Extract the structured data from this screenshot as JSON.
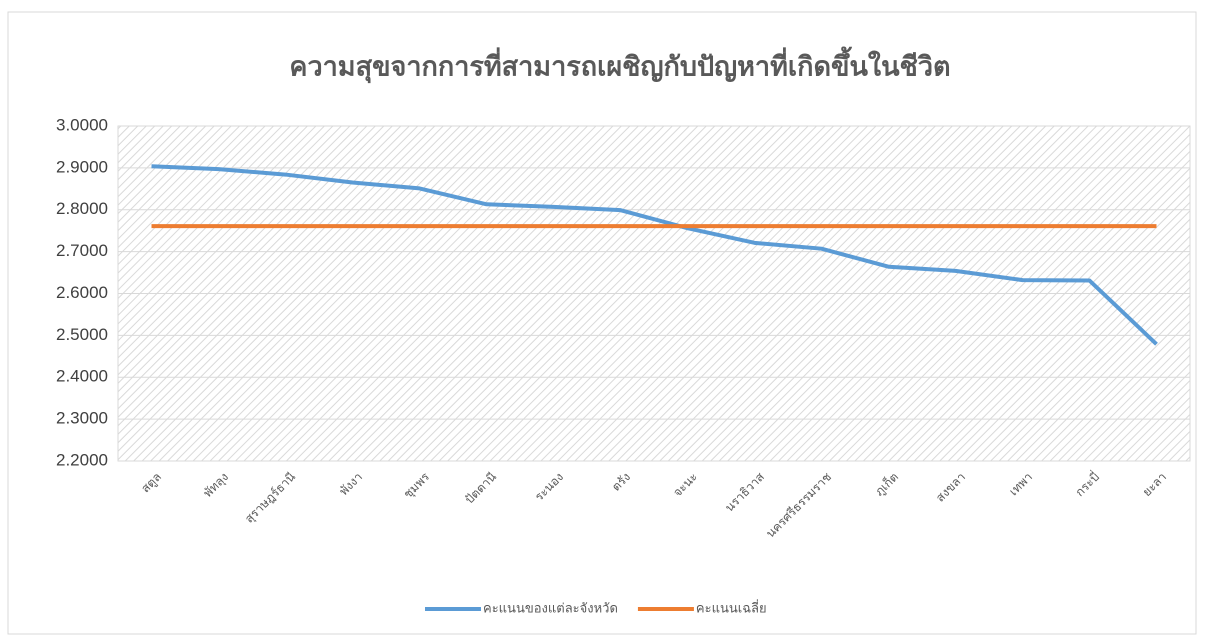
{
  "chart_data": {
    "type": "line",
    "title": "ความสุขจากการที่สามารถเผชิญกับปัญหาที่เกิดขึ้นในชีวิต",
    "categories": [
      "สตูล",
      "พัทลุง",
      "สุราษฎร์ธานี",
      "พังงา",
      "ชุมพร",
      "ปัตตานี",
      "ระนอง",
      "ตรัง",
      "จะนะ",
      "นราธิวาส",
      "นครศรีธรรมราช",
      "ภูเก็ต",
      "สงขลา",
      "เทพา",
      "กระบี่",
      "ยะลา"
    ],
    "series": [
      {
        "name": "คะแนนของแต่ละจังหวัด",
        "color": "#5b9bd5",
        "values": [
          2.904,
          2.897,
          2.884,
          2.865,
          2.851,
          2.813,
          2.807,
          2.799,
          2.756,
          2.721,
          2.707,
          2.664,
          2.654,
          2.632,
          2.631,
          2.479
        ]
      },
      {
        "name": "คะแนนเฉลี่ย",
        "color": "#ed7d31",
        "values": [
          2.761,
          2.761,
          2.761,
          2.761,
          2.761,
          2.761,
          2.761,
          2.761,
          2.761,
          2.761,
          2.761,
          2.761,
          2.761,
          2.761,
          2.761,
          2.761
        ]
      }
    ],
    "ylim": [
      2.2,
      3.0
    ],
    "yticks": [
      {
        "value": 2.2,
        "label": "2.2000"
      },
      {
        "value": 2.3,
        "label": "2.3000"
      },
      {
        "value": 2.4,
        "label": "2.4000"
      },
      {
        "value": 2.5,
        "label": "2.5000"
      },
      {
        "value": 2.6,
        "label": "2.6000"
      },
      {
        "value": 2.7,
        "label": "2.7000"
      },
      {
        "value": 2.8,
        "label": "2.8000"
      },
      {
        "value": 2.9,
        "label": "2.9000"
      },
      {
        "value": 3.0,
        "label": "3.0000"
      }
    ],
    "legend": "bottom"
  }
}
